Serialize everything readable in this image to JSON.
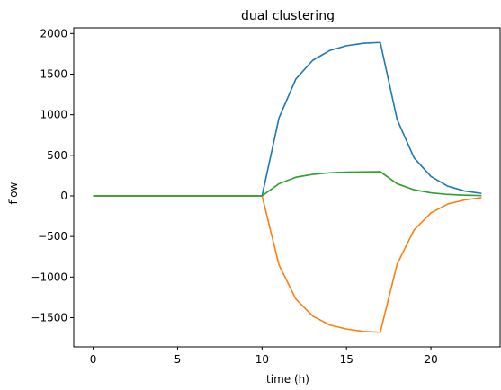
{
  "chart_data": {
    "type": "line",
    "title": "dual clustering",
    "xlabel": "time (h)",
    "ylabel": "flow",
    "xlim": [
      -1.15,
      24.15
    ],
    "ylim": [
      -1860,
      2070
    ],
    "xticks": [
      0,
      5,
      10,
      15,
      20
    ],
    "yticks": [
      -1500,
      -1000,
      -500,
      0,
      500,
      1000,
      1500,
      2000
    ],
    "x": [
      0,
      1,
      2,
      3,
      4,
      5,
      6,
      7,
      8,
      9,
      10,
      11,
      12,
      13,
      14,
      15,
      16,
      17,
      18,
      19,
      20,
      21,
      22,
      23
    ],
    "grid": false,
    "legend": false,
    "series": [
      {
        "color": "#1f77b4",
        "values": [
          0,
          0,
          0,
          0,
          0,
          0,
          0,
          0,
          0,
          0,
          0,
          960,
          1440,
          1670,
          1790,
          1850,
          1880,
          1890,
          940,
          470,
          240,
          120,
          60,
          30
        ]
      },
      {
        "color": "#ff7f0e",
        "values": [
          0,
          0,
          0,
          0,
          0,
          0,
          0,
          0,
          0,
          0,
          0,
          -850,
          -1270,
          -1480,
          -1590,
          -1640,
          -1670,
          -1680,
          -840,
          -420,
          -210,
          -100,
          -50,
          -20
        ]
      },
      {
        "color": "#2ca02c",
        "values": [
          0,
          0,
          0,
          0,
          0,
          0,
          0,
          0,
          0,
          0,
          0,
          150,
          230,
          265,
          285,
          292,
          296,
          298,
          150,
          75,
          38,
          18,
          9,
          4
        ]
      }
    ]
  }
}
